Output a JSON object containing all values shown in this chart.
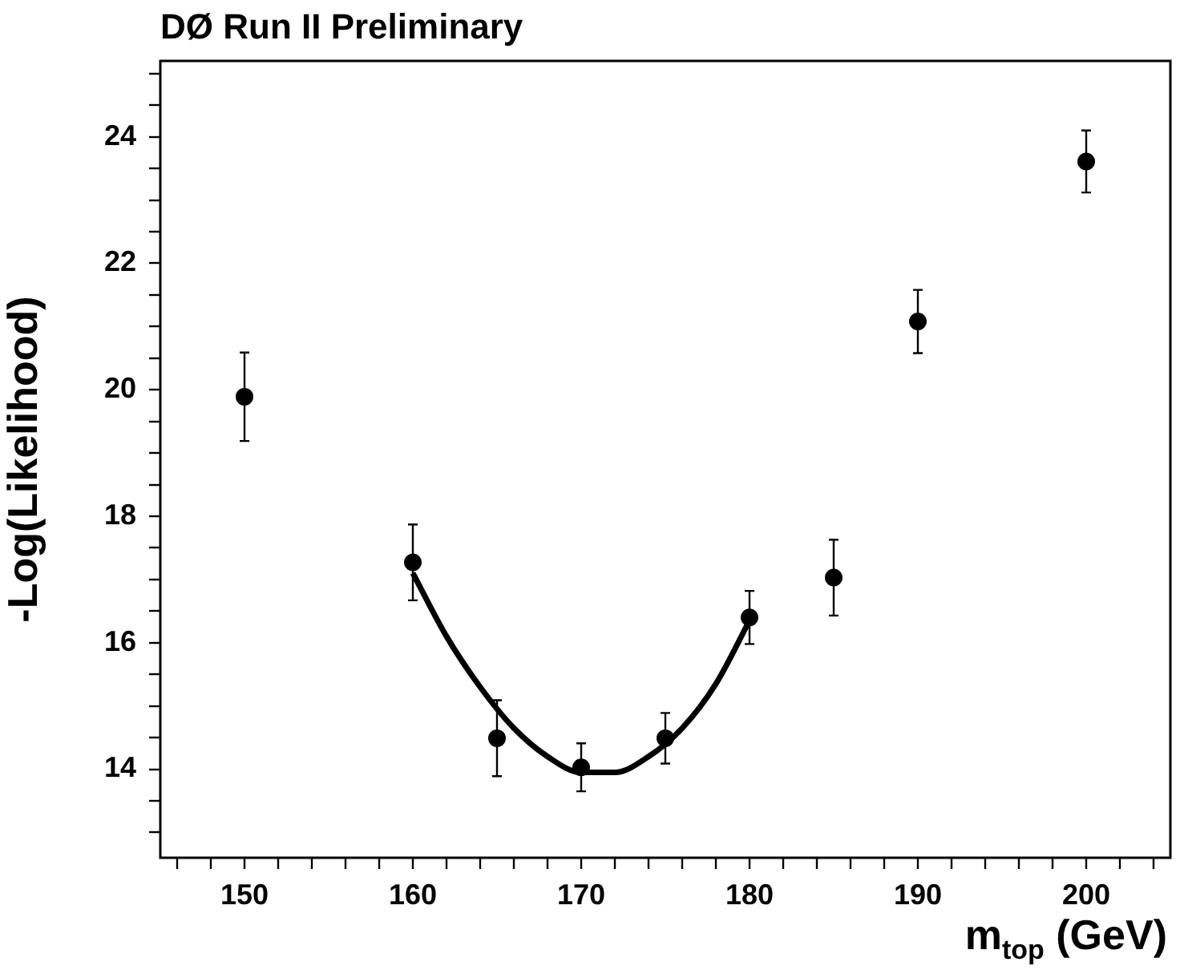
{
  "chart_data": {
    "type": "scatter",
    "title": "DØ Run II Preliminary",
    "xlabel": "m$_{top}$ (GeV)",
    "ylabel": "-Log(Likelihood)",
    "xlim": [
      145,
      205
    ],
    "ylim": [
      12.6,
      25.2
    ],
    "xticks": [
      {
        "value": 146,
        "label": null
      },
      {
        "value": 148,
        "label": null
      },
      150,
      {
        "value": 152,
        "label": null
      },
      {
        "value": 154,
        "label": null
      },
      {
        "value": 156,
        "label": null
      },
      {
        "value": 158,
        "label": null
      },
      160,
      {
        "value": 162,
        "label": null
      },
      {
        "value": 164,
        "label": null
      },
      {
        "value": 166,
        "label": null
      },
      {
        "value": 168,
        "label": null
      },
      170,
      {
        "value": 172,
        "label": null
      },
      {
        "value": 174,
        "label": null
      },
      {
        "value": 176,
        "label": null
      },
      {
        "value": 178,
        "label": null
      },
      180,
      {
        "value": 182,
        "label": null
      },
      {
        "value": 184,
        "label": null
      },
      {
        "value": 186,
        "label": null
      },
      {
        "value": 188,
        "label": null
      },
      190,
      {
        "value": 192,
        "label": null
      },
      {
        "value": 194,
        "label": null
      },
      {
        "value": 196,
        "label": null
      },
      {
        "value": 198,
        "label": null
      },
      200,
      {
        "value": 202,
        "label": null
      },
      {
        "value": 204,
        "label": null
      }
    ],
    "yticks": [
      {
        "value": 13,
        "label": null
      },
      {
        "value": 13.5,
        "label": null
      },
      14,
      {
        "value": 14.5,
        "label": null
      },
      {
        "value": 15,
        "label": null
      },
      {
        "value": 15.5,
        "label": null
      },
      16,
      {
        "value": 16.5,
        "label": null
      },
      {
        "value": 17,
        "label": null
      },
      {
        "value": 17.5,
        "label": null
      },
      18,
      {
        "value": 18.5,
        "label": null
      },
      {
        "value": 19,
        "label": null
      },
      {
        "value": 19.5,
        "label": null
      },
      20,
      {
        "value": 20.5,
        "label": null
      },
      {
        "value": 21,
        "label": null
      },
      {
        "value": 21.5,
        "label": null
      },
      22,
      {
        "value": 22.5,
        "label": null
      },
      {
        "value": 23,
        "label": null
      },
      {
        "value": 23.5,
        "label": null
      },
      24,
      {
        "value": 24.5,
        "label": null
      },
      {
        "value": 25,
        "label": null
      }
    ],
    "series": [
      {
        "type": "scatter",
        "color": "#000000",
        "x": [
          150,
          160,
          165,
          170,
          175,
          180,
          185,
          190,
          200
        ],
        "values": [
          19.89,
          17.27,
          14.49,
          14.03,
          14.49,
          16.4,
          17.03,
          21.08,
          23.61
        ],
        "errors": [
          0.7,
          0.6,
          0.6,
          0.38,
          0.4,
          0.42,
          0.6,
          0.5,
          0.49
        ]
      },
      {
        "type": "line",
        "color": "#000000",
        "x": [
          160,
          162,
          164,
          166,
          168,
          170,
          172,
          174,
          176,
          178,
          180
        ],
        "values": [
          17.1,
          16.1,
          15.3,
          14.65,
          14.2,
          13.95,
          13.95,
          14.2,
          14.65,
          15.35,
          16.35
        ]
      }
    ]
  }
}
